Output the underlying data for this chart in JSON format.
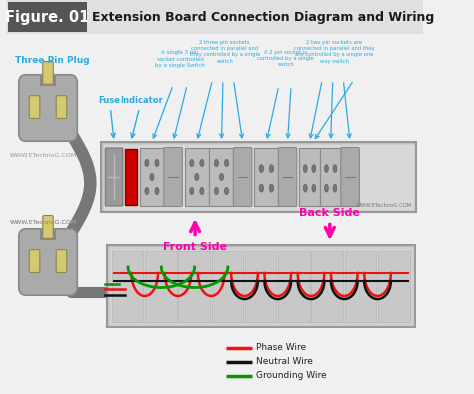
{
  "title_box": "Figure. 01",
  "title_text": "Extension Board Connection Diagram and Wiring",
  "bg_color": "#f0f0f0",
  "header_box_color": "#555555",
  "header_text_color": "#ffffff",
  "header_title_color": "#1a1a1a",
  "header_bg": "#e0e0e0",
  "cyan_color": "#29ABE2",
  "magenta_color": "#FF00AA",
  "red_wire": "#EE1111",
  "black_wire": "#111111",
  "green_wire": "#009900",
  "plug_body": "#AAAAAA",
  "plug_dark": "#888888",
  "plug_pin": "#D4C870",
  "cable_color": "#777777",
  "board_outer": "#C0C0C0",
  "board_inner": "#D8D8D8",
  "fuse_color": "#999999",
  "indicator_color": "#CC0000",
  "socket_bg": "#BBBBBB",
  "socket_hole": "#777777",
  "switch_color": "#999999",
  "watermark_color": "#999999",
  "watermark": "WWW.ETechnoG.COM",
  "legend_items": [
    {
      "label": "Phase Wire",
      "color": "#EE1111"
    },
    {
      "label": "Neutral Wire",
      "color": "#111111"
    },
    {
      "label": "Grounding Wire",
      "color": "#009900"
    }
  ],
  "labels": {
    "fuse": "Fuse",
    "indicator": "Indicator",
    "three_pin_plug": "Three Pin Plug",
    "front_side": "Front Side",
    "back_side": "Back Side",
    "single_3pin": "A single 3 pin\nsocket controlled\nby a single Switch",
    "two_3pin": "2 three pin sockets\nconnected in parallel and\nthey controlled by a single\nswitch",
    "a_2pin": "A 2 pin socket is\ncontrolled by a single\nswitch",
    "two_2pin": "2 two pin sockets are\nconnected in parallel and they\nare controlled by a single one\nway switch"
  }
}
